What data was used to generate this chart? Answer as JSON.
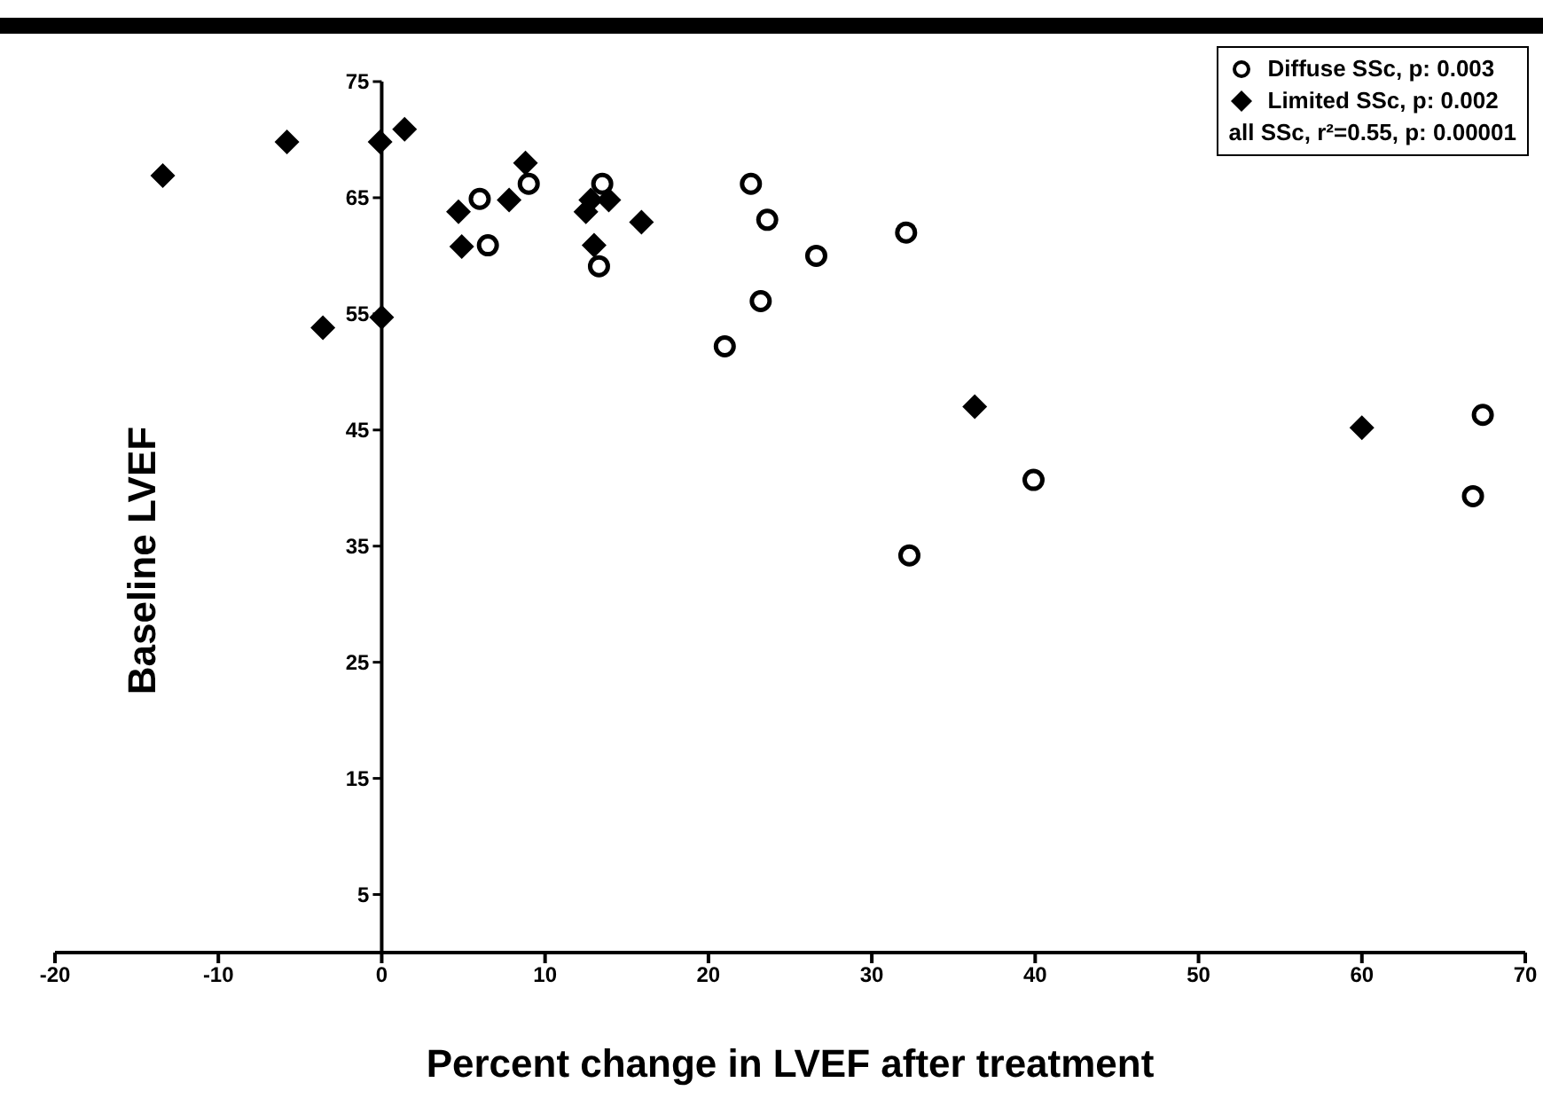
{
  "chart_data": {
    "type": "scatter",
    "xlabel": "Percent change in LVEF after treatment",
    "ylabel": "Baseline LVEF",
    "xlim": [
      -20,
      70
    ],
    "xticks": [
      {
        "value": -20,
        "label": "-20"
      },
      -10,
      0,
      10,
      20,
      30,
      40,
      50,
      60,
      70
    ],
    "ylim": [
      0,
      75
    ],
    "yticks": [
      5,
      15,
      25,
      35,
      45,
      55,
      65,
      75
    ],
    "grid": false,
    "legend": "top right",
    "annotations": [
      "all SSc, r²=0.55, p: 0.00001"
    ],
    "series": [
      {
        "name": "Diffuse SSc, p: 0.003",
        "color": "#000000",
        "marker": "circle",
        "x": [
          6.0,
          6.5,
          9.0,
          13.5,
          13.3,
          22.6,
          23.6,
          26.6,
          23.2,
          21.0,
          32.1,
          39.9,
          32.3,
          67.4,
          66.8
        ],
        "values": [
          64.9,
          60.9,
          66.2,
          66.2,
          59.1,
          66.2,
          63.1,
          60.0,
          56.1,
          52.2,
          62.0,
          40.7,
          34.2,
          46.3,
          39.3
        ]
      },
      {
        "name": "Limited SSc, p: 0.002",
        "color": "#000000",
        "marker": "diamond",
        "x": [
          -13.4,
          -5.8,
          -0.1,
          1.4,
          -3.6,
          0,
          4.7,
          4.9,
          7.8,
          8.8,
          12.5,
          12.8,
          13.9,
          13.0,
          15.9,
          36.3,
          60.0
        ],
        "values": [
          66.9,
          69.8,
          69.8,
          70.9,
          53.8,
          54.7,
          63.8,
          60.8,
          64.8,
          68.0,
          63.8,
          64.8,
          64.8,
          60.9,
          62.9,
          47.0,
          45.2
        ]
      }
    ]
  }
}
